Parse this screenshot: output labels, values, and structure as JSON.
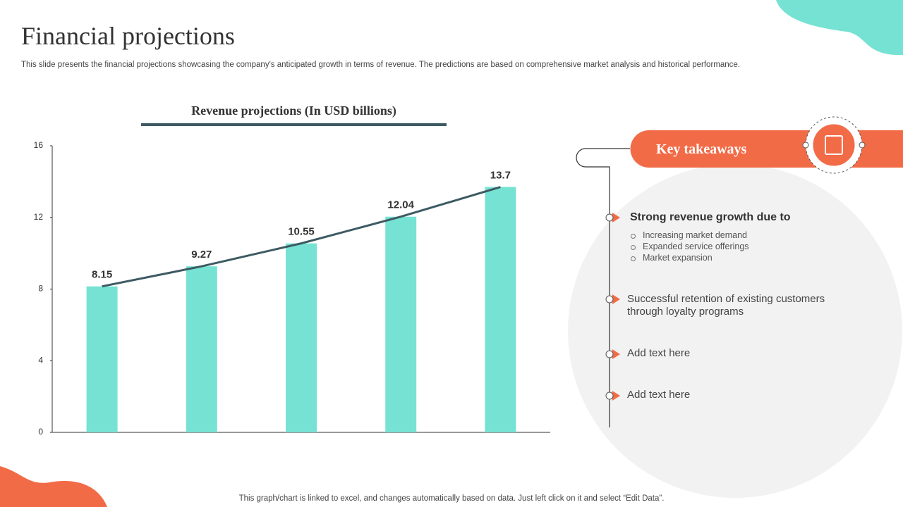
{
  "title": "Financial projections",
  "subtitle": "This slide presents the financial projections showcasing the company's anticipated growth in terms of revenue. The predictions are based on comprehensive market analysis and historical performance.",
  "chart_data": {
    "type": "bar",
    "title": "Revenue projections (In USD billions)",
    "categories": [
      null,
      null,
      null,
      null,
      null
    ],
    "values": [
      8.15,
      9.27,
      10.55,
      12.04,
      13.7
    ],
    "color": "#76e2d3",
    "line_color": "#3d5a63",
    "ylim": [
      0,
      16
    ],
    "yticks": [
      0,
      4,
      8,
      12,
      16
    ]
  },
  "takeaways": {
    "title": "Key takeaways",
    "items": [
      {
        "text": "Strong revenue growth due to",
        "subitems": [
          "Increasing market demand",
          "Expanded service offerings",
          "Market expansion"
        ]
      },
      {
        "text": "Successful retention of existing customers through loyalty programs"
      },
      {
        "text": "Add text here"
      },
      {
        "text": "Add text here"
      }
    ]
  },
  "footer": "This graph/chart is linked to excel, and changes automatically based on data. Just left click on it and select “Edit Data”."
}
